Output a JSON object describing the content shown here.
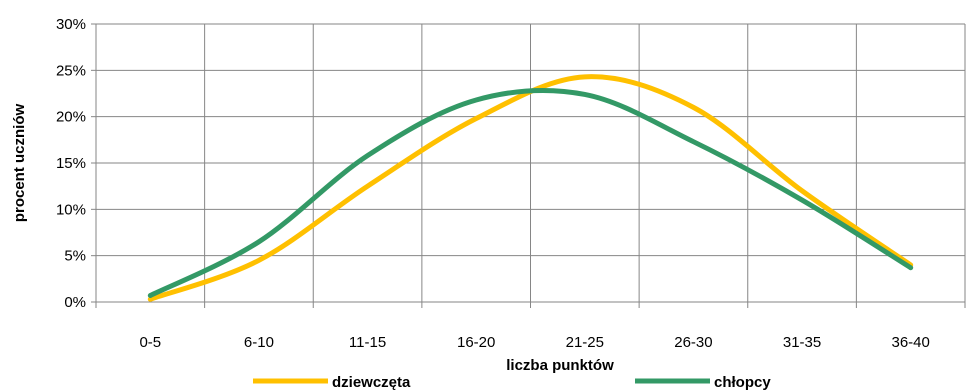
{
  "chart_data": {
    "type": "line",
    "title": "",
    "xlabel": "liczba punktów",
    "ylabel": "procent  uczniów",
    "categories": [
      "0-5",
      "6-10",
      "11-15",
      "16-20",
      "21-25",
      "26-30",
      "31-35",
      "36-40"
    ],
    "ylim": [
      0,
      30
    ],
    "yticks": [
      "0%",
      "5%",
      "10%",
      "15%",
      "20%",
      "25%",
      "30%"
    ],
    "grid": true,
    "legend_position": "bottom",
    "series": [
      {
        "name": "dziewczęta",
        "color": "#FFC000",
        "values": [
          0.3,
          4.5,
          12.5,
          19.8,
          24.3,
          21.0,
          12.0,
          4.0
        ]
      },
      {
        "name": "chłopcy",
        "color": "#339966",
        "values": [
          0.7,
          6.5,
          15.8,
          21.8,
          22.4,
          17.3,
          11.0,
          3.7
        ]
      }
    ]
  }
}
